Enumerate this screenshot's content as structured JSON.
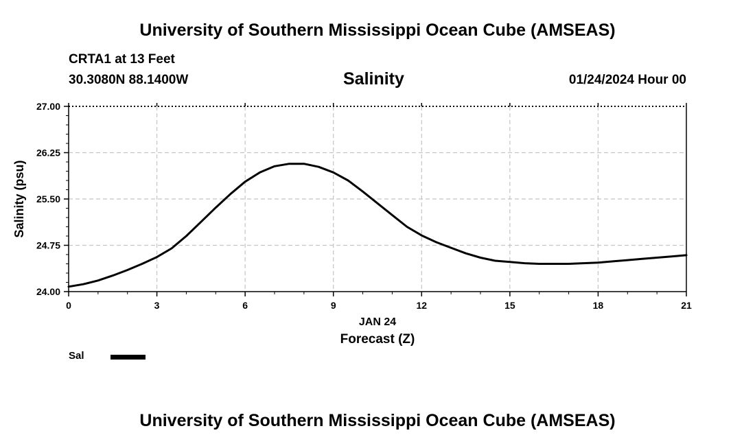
{
  "header": {
    "title_top": "University of Southern Mississippi Ocean Cube (AMSEAS)",
    "station": "CRTA1 at 13 Feet",
    "location": "30.3080N  88.1400W",
    "datetime": "01/24/2024 Hour 00",
    "title_bottom": "University of Southern Mississippi Ocean Cube (AMSEAS)"
  },
  "chart_data": {
    "type": "line",
    "title": "Salinity",
    "xlabel": "Forecast (Z)",
    "xsublabel": "JAN 24",
    "ylabel": "Salinity (psu)",
    "xlim": [
      0,
      21
    ],
    "ylim": [
      24.0,
      27.0
    ],
    "x_ticks": [
      "0",
      "3",
      "6",
      "9",
      "12",
      "15",
      "18",
      "21"
    ],
    "y_ticks": [
      "24.00",
      "24.75",
      "25.50",
      "26.25",
      "27.00"
    ],
    "grid": true,
    "legend": {
      "position": "bottom-left"
    },
    "series": [
      {
        "name": "Sal",
        "color": "#000000",
        "x": [
          0,
          0.5,
          1,
          1.5,
          2,
          2.5,
          3,
          3.5,
          4,
          4.5,
          5,
          5.5,
          6,
          6.5,
          7,
          7.5,
          8,
          8.5,
          9,
          9.5,
          10,
          10.5,
          11,
          11.5,
          12,
          12.5,
          13,
          13.5,
          14,
          14.5,
          15,
          15.5,
          16,
          16.5,
          17,
          17.5,
          18,
          18.5,
          19,
          19.5,
          20,
          20.5,
          21
        ],
        "values": [
          24.08,
          24.12,
          24.18,
          24.26,
          24.35,
          24.45,
          24.56,
          24.7,
          24.9,
          25.13,
          25.36,
          25.58,
          25.78,
          25.93,
          26.03,
          26.07,
          26.07,
          26.02,
          25.93,
          25.8,
          25.62,
          25.43,
          25.24,
          25.05,
          24.91,
          24.8,
          24.71,
          24.62,
          24.55,
          24.5,
          24.48,
          24.46,
          24.45,
          24.45,
          24.45,
          24.46,
          24.47,
          24.49,
          24.51,
          24.53,
          24.55,
          24.57,
          24.59
        ]
      }
    ]
  }
}
